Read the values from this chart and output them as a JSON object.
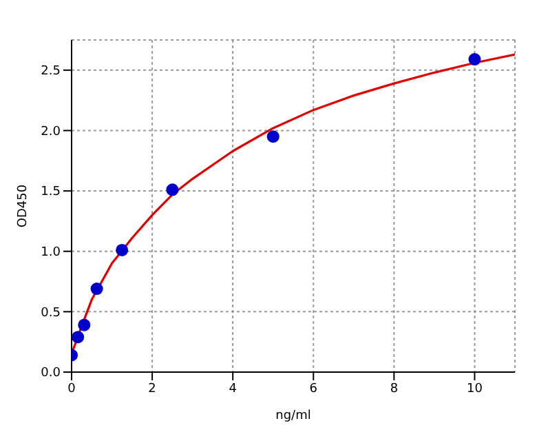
{
  "chart_data": {
    "type": "scatter",
    "xlabel": "ng/ml",
    "ylabel": "OD450",
    "xlim": [
      0,
      11
    ],
    "ylim": [
      0,
      2.75
    ],
    "xticks": [
      0,
      2,
      4,
      6,
      8,
      10
    ],
    "yticks": [
      {
        "value": 0,
        "label": "0.0"
      },
      0.5,
      {
        "value": 1,
        "label": "1.0"
      },
      1.5,
      {
        "value": 2,
        "label": "2.0"
      },
      2.5
    ],
    "grid": true,
    "marker": "circle",
    "legend": false,
    "series": [
      {
        "color": "#0000cc",
        "x": [
          0,
          0.156,
          0.3125,
          0.625,
          1.25,
          2.5,
          5,
          10
        ],
        "values": [
          0.14,
          0.29,
          0.39,
          0.69,
          1.01,
          1.51,
          1.95,
          2.59
        ]
      },
      {
        "type": "line",
        "color": "#e00000",
        "marker": "none",
        "x": [
          0,
          0.25,
          0.5,
          1,
          1.5,
          2,
          2.5,
          3,
          4,
          5,
          6,
          7,
          8,
          9,
          10,
          11
        ],
        "values": [
          0.15,
          0.38,
          0.6,
          0.9,
          1.11,
          1.3,
          1.47,
          1.6,
          1.83,
          2.02,
          2.17,
          2.29,
          2.39,
          2.48,
          2.56,
          2.63
        ]
      }
    ]
  }
}
